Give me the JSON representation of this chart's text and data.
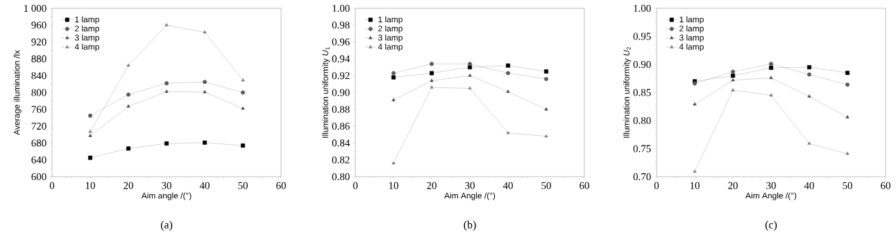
{
  "chart_data": [
    {
      "type": "line",
      "ylabel": "Average illumination /lx",
      "xlabel": "Aim angle  /(°)",
      "annotations": [
        "(a)"
      ],
      "x": [
        10,
        20,
        30,
        40,
        50
      ],
      "xlim": [
        0,
        60
      ],
      "xticks": [
        0,
        10,
        20,
        30,
        40,
        50,
        60
      ],
      "ylim": [
        600,
        1000
      ],
      "yticks": [
        600,
        640,
        680,
        720,
        760,
        800,
        840,
        880,
        920,
        960,
        {
          "value": 1000,
          "label": "1 000"
        }
      ],
      "legend": "top left",
      "grid": false,
      "series": [
        {
          "name": "1 lamp",
          "color": "#000000",
          "marker": "square",
          "values": [
            645,
            667,
            679,
            681,
            674
          ]
        },
        {
          "name": "2 lamp",
          "color": "#5a5a5a",
          "marker": "circle",
          "values": [
            745,
            795,
            822,
            825,
            800
          ]
        },
        {
          "name": "3 lamp",
          "color": "#4a4a4a",
          "marker": "triangle",
          "values": [
            697,
            767,
            802,
            801,
            762
          ]
        },
        {
          "name": "4 lamp",
          "color": "#808080",
          "marker": "triangle-down",
          "values": [
            707,
            864,
            960,
            943,
            829
          ]
        }
      ]
    },
    {
      "type": "line",
      "ylabel": "Illumination uniformity *U*$_{1}$",
      "xlabel": "Aim Angle  /(°)",
      "annotations": [
        "(b)"
      ],
      "x": [
        10,
        20,
        30,
        40,
        50
      ],
      "xlim": [
        0,
        60
      ],
      "xticks": [
        0,
        10,
        20,
        30,
        40,
        50,
        60
      ],
      "ylim": [
        0.8,
        1.0
      ],
      "yticks": [
        {
          "value": 0.8,
          "label": "0.80"
        },
        {
          "value": 0.82,
          "label": "0.82"
        },
        {
          "value": 0.84,
          "label": "0.84"
        },
        {
          "value": 0.86,
          "label": "0.86"
        },
        {
          "value": 0.88,
          "label": "0.88"
        },
        {
          "value": 0.9,
          "label": "0.90"
        },
        {
          "value": 0.92,
          "label": "0.92"
        },
        {
          "value": 0.94,
          "label": "0.94"
        },
        {
          "value": 0.96,
          "label": "0.96"
        },
        {
          "value": 0.98,
          "label": "0.98"
        },
        {
          "value": 1.0,
          "label": "1.00"
        }
      ],
      "legend": "top left",
      "grid": false,
      "series": [
        {
          "name": "1 lamp",
          "color": "#000000",
          "marker": "square",
          "values": [
            0.918,
            0.923,
            0.93,
            0.932,
            0.925
          ]
        },
        {
          "name": "2 lamp",
          "color": "#5a5a5a",
          "marker": "circle",
          "values": [
            0.923,
            0.934,
            0.934,
            0.923,
            0.916
          ]
        },
        {
          "name": "3 lamp",
          "color": "#4a4a4a",
          "marker": "triangle",
          "values": [
            0.891,
            0.914,
            0.92,
            0.901,
            0.88
          ]
        },
        {
          "name": "4 lamp",
          "color": "#808080",
          "marker": "triangle-down",
          "values": [
            0.816,
            0.906,
            0.905,
            0.852,
            0.848
          ]
        }
      ]
    },
    {
      "type": "line",
      "ylabel": "Illumination uniformity *U*$_{2}$",
      "xlabel": "Aim Angle /(°)",
      "annotations": [
        "(c)"
      ],
      "x": [
        10,
        20,
        30,
        40,
        50
      ],
      "xlim": [
        0,
        60
      ],
      "xticks": [
        0,
        10,
        20,
        30,
        40,
        50,
        60
      ],
      "ylim": [
        0.7,
        1.0
      ],
      "yticks": [
        {
          "value": 0.7,
          "label": "0.70"
        },
        {
          "value": 0.75,
          "label": "0.75"
        },
        {
          "value": 0.8,
          "label": "0.80"
        },
        {
          "value": 0.85,
          "label": "0.85"
        },
        {
          "value": 0.9,
          "label": "0.90"
        },
        {
          "value": 0.95,
          "label": "0.95"
        },
        {
          "value": 1.0,
          "label": "1.00"
        }
      ],
      "legend": "top left",
      "grid": false,
      "series": [
        {
          "name": "1 lamp",
          "color": "#000000",
          "marker": "square",
          "values": [
            0.87,
            0.88,
            0.894,
            0.895,
            0.885
          ]
        },
        {
          "name": "2 lamp",
          "color": "#5a5a5a",
          "marker": "circle",
          "values": [
            0.866,
            0.887,
            0.901,
            0.882,
            0.864
          ]
        },
        {
          "name": "3 lamp",
          "color": "#4a4a4a",
          "marker": "triangle",
          "values": [
            0.829,
            0.872,
            0.876,
            0.843,
            0.806
          ]
        },
        {
          "name": "4 lamp",
          "color": "#808080",
          "marker": "triangle-down",
          "values": [
            0.709,
            0.854,
            0.845,
            0.759,
            0.741
          ]
        }
      ]
    }
  ]
}
